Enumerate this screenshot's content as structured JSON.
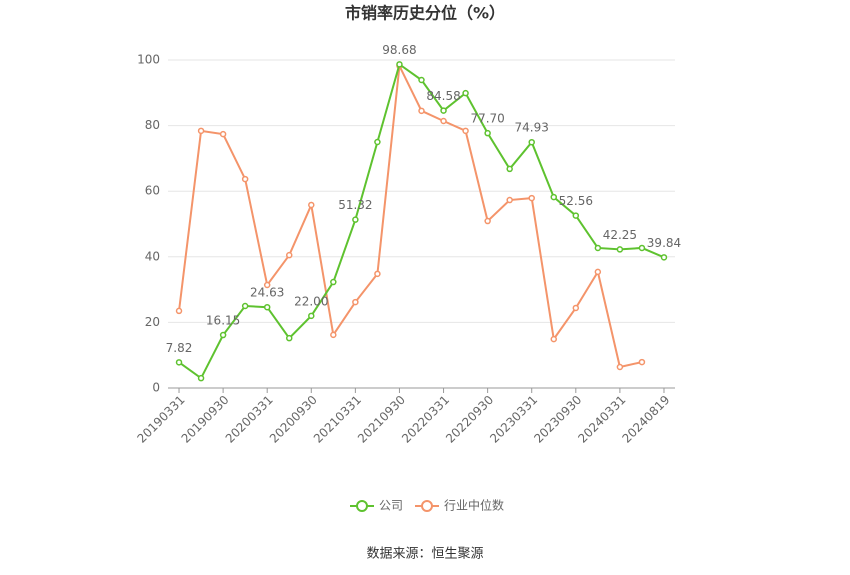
{
  "chart_data": {
    "type": "line",
    "title": "市销率历史分位（%）",
    "categories": [
      "20190331",
      null,
      "20190930",
      null,
      "20200331",
      null,
      "20200930",
      null,
      "20210331",
      null,
      "20210930",
      null,
      "20220331",
      null,
      "20220930",
      null,
      "20230331",
      null,
      "20230930",
      null,
      "20240331",
      null,
      "20240819"
    ],
    "series": [
      {
        "name": "公司",
        "color": "#5ec22f",
        "values": [
          7.82,
          3.0,
          16.15,
          25.0,
          24.63,
          15.2,
          22.0,
          32.3,
          51.32,
          75.0,
          98.68,
          93.9,
          84.58,
          89.9,
          77.7,
          66.8,
          74.93,
          58.2,
          52.56,
          42.7,
          42.25,
          42.7,
          39.84
        ],
        "value_labels": [
          "7.82",
          null,
          "16.15",
          null,
          "24.63",
          null,
          "22.00",
          null,
          "51.32",
          null,
          "98.68",
          null,
          "84.58",
          null,
          "77.70",
          null,
          "74.93",
          null,
          "52.56",
          null,
          "42.25",
          null,
          "39.84"
        ]
      },
      {
        "name": "行业中位数",
        "color": "#f4946a",
        "values": [
          23.5,
          78.4,
          77.4,
          63.7,
          31.4,
          40.5,
          55.8,
          16.2,
          26.2,
          34.8,
          98.2,
          84.5,
          81.4,
          78.4,
          50.9,
          57.3,
          57.9,
          14.9,
          24.4,
          35.4,
          6.4,
          7.9,
          null
        ]
      }
    ],
    "ylim": [
      0,
      100
    ],
    "yticks": [
      0,
      20,
      40,
      60,
      80,
      100
    ],
    "grid": true,
    "source": "数据来源：恒生聚源"
  }
}
